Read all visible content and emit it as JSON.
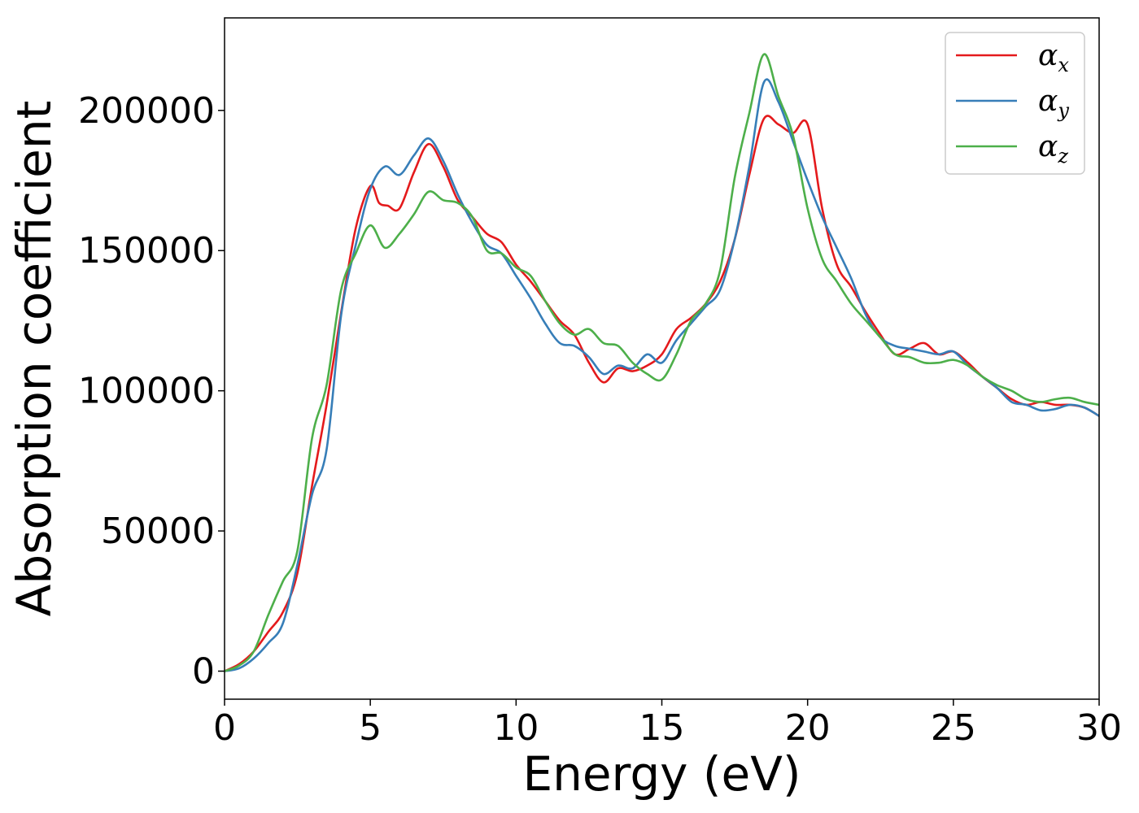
{
  "chart_data": {
    "type": "line",
    "xlabel": "Energy (eV)",
    "ylabel": "Absorption coefficient",
    "xlim": [
      0,
      30
    ],
    "ylim": [
      -10000,
      233000
    ],
    "xticks": [
      0,
      5,
      10,
      15,
      20,
      25,
      30
    ],
    "yticks": [
      0,
      50000,
      100000,
      150000,
      200000
    ],
    "xtick_labels": [
      "0",
      "5",
      "10",
      "15",
      "20",
      "25",
      "30"
    ],
    "ytick_labels": [
      "0",
      "50000",
      "100000",
      "150000",
      "200000"
    ],
    "grid": false,
    "legend_position": "top-right",
    "series": [
      {
        "name": "α",
        "subscript": "x",
        "color": "#e41a1c",
        "x": [
          0,
          0.5,
          1,
          1.5,
          2,
          2.5,
          3,
          3.5,
          4,
          4.5,
          5,
          5.3,
          5.6,
          6,
          6.5,
          7,
          7.5,
          8,
          8.5,
          9,
          9.5,
          10,
          10.5,
          11,
          11.5,
          12,
          12.5,
          13,
          13.5,
          14,
          14.5,
          15,
          15.5,
          16,
          16.5,
          17,
          17.5,
          18,
          18.5,
          19,
          19.5,
          20,
          20.5,
          21,
          21.5,
          22,
          22.5,
          23,
          23.5,
          24,
          24.5,
          25,
          25.5,
          26,
          26.5,
          27,
          27.5,
          28,
          28.5,
          29,
          29.5,
          30
        ],
        "y": [
          0,
          2500,
          7000,
          14000,
          21000,
          35000,
          66000,
          95000,
          128000,
          158000,
          173000,
          167000,
          166000,
          165000,
          178000,
          188000,
          180000,
          168000,
          162000,
          156000,
          153000,
          145000,
          139000,
          132000,
          125000,
          120000,
          110000,
          103000,
          108000,
          107000,
          109000,
          113000,
          122000,
          126000,
          131000,
          139000,
          154000,
          177000,
          197000,
          195000,
          192000,
          195000,
          165000,
          145000,
          137000,
          128000,
          120000,
          113000,
          115000,
          117000,
          113000,
          114000,
          110000,
          105000,
          101000,
          97000,
          95000,
          96000,
          95000,
          95000,
          94000,
          91000
        ]
      },
      {
        "name": "α",
        "subscript": "y",
        "color": "#377eb8",
        "x": [
          0,
          0.5,
          1,
          1.5,
          2,
          2.5,
          3,
          3.5,
          4,
          4.5,
          5,
          5.5,
          6,
          6.5,
          7,
          7.5,
          8,
          8.5,
          9,
          9.5,
          10,
          10.5,
          11,
          11.5,
          12,
          12.5,
          13,
          13.5,
          14,
          14.5,
          15,
          15.5,
          16,
          16.5,
          17,
          17.5,
          18,
          18.5,
          19,
          19.5,
          20,
          20.5,
          21,
          21.5,
          22,
          22.5,
          23,
          23.5,
          24,
          24.5,
          25,
          25.5,
          26,
          26.5,
          27,
          27.5,
          28,
          28.5,
          29,
          29.5,
          30
        ],
        "y": [
          0,
          1000,
          4500,
          10000,
          17000,
          38000,
          63000,
          79000,
          127000,
          152000,
          172000,
          180000,
          177000,
          184000,
          190000,
          182000,
          170000,
          160000,
          152000,
          149000,
          141000,
          133000,
          124000,
          117000,
          116000,
          112000,
          106000,
          109000,
          108000,
          113000,
          110000,
          118000,
          124000,
          130000,
          136000,
          154000,
          180000,
          210000,
          203000,
          189000,
          175000,
          162000,
          151000,
          140000,
          127000,
          119000,
          116000,
          115000,
          114000,
          113000,
          114000,
          109000,
          105000,
          101000,
          96000,
          95000,
          93000,
          93500,
          95000,
          94000,
          91000
        ]
      },
      {
        "name": "α",
        "subscript": "z",
        "color": "#4daf4a",
        "x": [
          0,
          0.5,
          1,
          1.5,
          2,
          2.5,
          3,
          3.5,
          4,
          4.5,
          5,
          5.5,
          6,
          6.5,
          7,
          7.5,
          8,
          8.5,
          9,
          9.5,
          10,
          10.5,
          11,
          11.5,
          12,
          12.5,
          13,
          13.5,
          14,
          14.5,
          15,
          15.5,
          16,
          16.5,
          17,
          17.5,
          18,
          18.5,
          19,
          19.5,
          20,
          20.5,
          21,
          21.5,
          22,
          22.5,
          23,
          23.5,
          24,
          24.5,
          25,
          25.5,
          26,
          26.5,
          27,
          27.5,
          28,
          28.5,
          29,
          29.5,
          30
        ],
        "y": [
          0,
          2000,
          7000,
          20000,
          32000,
          43000,
          83000,
          102000,
          136000,
          149000,
          159000,
          151000,
          156000,
          163000,
          171000,
          168000,
          167000,
          162000,
          150000,
          149000,
          144000,
          141000,
          132000,
          124000,
          120000,
          122000,
          117000,
          116000,
          110000,
          106000,
          104000,
          113000,
          125000,
          131000,
          143000,
          176000,
          199000,
          220000,
          205000,
          191000,
          165000,
          147000,
          139000,
          131000,
          125000,
          119000,
          113000,
          112000,
          110000,
          110000,
          111000,
          109000,
          105000,
          102000,
          100000,
          97000,
          96000,
          97000,
          97500,
          96000,
          95000
        ]
      }
    ]
  }
}
